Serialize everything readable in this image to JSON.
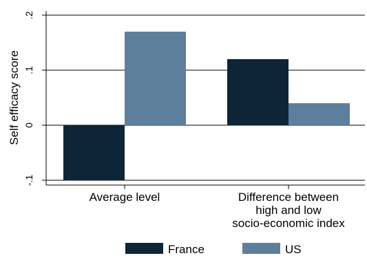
{
  "chart_data": {
    "type": "bar",
    "categories": [
      [
        "Average level"
      ],
      [
        "Difference between",
        "high and low",
        "socio-economic index"
      ]
    ],
    "series": [
      {
        "name": "France",
        "values": [
          -0.1,
          0.12
        ],
        "color": "#0e2538"
      },
      {
        "name": "US",
        "values": [
          0.17,
          0.04
        ],
        "color": "#5d7f9b"
      }
    ],
    "ylabel": "Self efficacy score",
    "ylim": [
      -0.1,
      0.2
    ],
    "yticks": [
      -0.1,
      0,
      0.1,
      0.2
    ],
    "ytick_labels": [
      "-.1",
      "0",
      ".1",
      ".2"
    ],
    "grid": true,
    "legend_position": "bottom"
  }
}
